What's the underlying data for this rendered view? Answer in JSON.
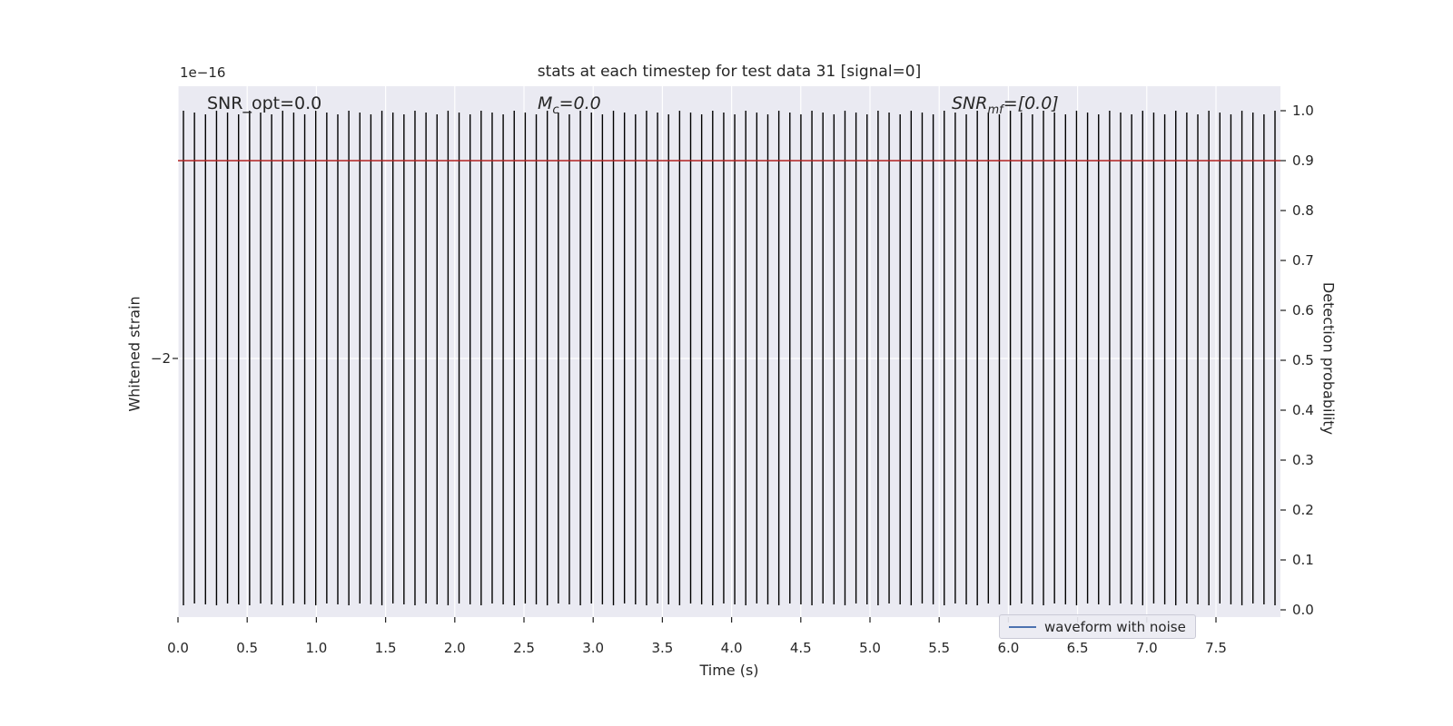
{
  "figure": {
    "title": "stats at each timestep for test data 31 [signal=0]",
    "offset_text": "1e−16",
    "x_axis": {
      "label": "Time (s)",
      "ticks": [
        "0.0",
        "0.5",
        "1.0",
        "1.5",
        "2.0",
        "2.5",
        "3.0",
        "3.5",
        "4.0",
        "4.5",
        "5.0",
        "5.5",
        "6.0",
        "6.5",
        "7.0",
        "7.5"
      ]
    },
    "left_axis": {
      "label": "Whitened strain",
      "ticks": [
        "−2"
      ]
    },
    "right_axis": {
      "label": "Detection probability",
      "ticks": [
        "0.0",
        "0.1",
        "0.2",
        "0.3",
        "0.4",
        "0.5",
        "0.6",
        "0.7",
        "0.8",
        "0.9",
        "1.0"
      ]
    },
    "annotations": [
      {
        "prefix": "SNR_opt",
        "sub": "",
        "suffix": "=0.0",
        "italic": false
      },
      {
        "prefix": "M",
        "sub": "c",
        "suffix": "=0.0",
        "italic": true
      },
      {
        "prefix": "SNR",
        "sub": "mf",
        "suffix": "=[0.0]",
        "italic": true
      }
    ],
    "legend": {
      "label": "waveform with noise"
    },
    "colors": {
      "plot_bg": "#eaeaf2",
      "waveform": "#000000",
      "threshold_line": "#b22222",
      "legend_line": "#4c72b0",
      "grid": "#ffffff",
      "text": "#262626"
    }
  },
  "chart_data": {
    "type": "line",
    "title": "stats at each timestep for test data 31 [signal=0]",
    "xlabel": "Time (s)",
    "x_range": [
      0.0,
      7.96
    ],
    "x_tick_values": [
      0.0,
      0.5,
      1.0,
      1.5,
      2.0,
      2.5,
      3.0,
      3.5,
      4.0,
      4.5,
      5.0,
      5.5,
      6.0,
      6.5,
      7.0,
      7.5
    ],
    "left_axis": {
      "ylabel": "Whitened strain",
      "scale_factor": "1e−16",
      "tick_values": [
        -2
      ]
    },
    "right_axis": {
      "ylabel": "Detection probability",
      "ylim": [
        0.0,
        1.0
      ],
      "tick_step": 0.1
    },
    "series": [
      {
        "name": "waveform with noise",
        "axis": "left",
        "color": "#000000",
        "style": "dense full-amplitude oscillatory noise spanning the whole plot",
        "n_oscillations": 100
      },
      {
        "name": "detection probability threshold",
        "axis": "right",
        "color": "#b22222",
        "constant_value": 0.9
      }
    ],
    "annotations": [
      "SNR_opt=0.0",
      "M_c=0.0",
      "SNR_mf=[0.0]"
    ],
    "legend": {
      "entries": [
        "waveform with noise"
      ],
      "position": "lower right"
    },
    "grid": true,
    "plot_background": "#eaeaf2"
  }
}
